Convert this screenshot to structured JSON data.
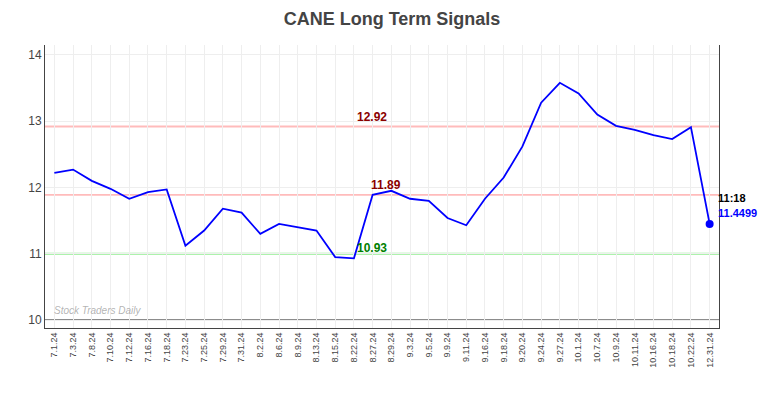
{
  "chart_data": {
    "type": "line",
    "title": "CANE Long Term Signals",
    "categories": [
      "7.1.24",
      "7.3.24",
      "7.8.24",
      "7.10.24",
      "7.12.24",
      "7.16.24",
      "7.18.24",
      "7.23.24",
      "7.25.24",
      "7.29.24",
      "7.31.24",
      "8.2.24",
      "8.6.24",
      "8.9.24",
      "8.13.24",
      "8.15.24",
      "8.22.24",
      "8.27.24",
      "8.29.24",
      "9.3.24",
      "9.5.24",
      "9.9.24",
      "9.11.24",
      "9.16.24",
      "9.18.24",
      "9.20.24",
      "9.24.24",
      "9.27.24",
      "10.1.24",
      "10.7.24",
      "10.9.24",
      "10.11.24",
      "10.16.24",
      "10.18.24",
      "10.22.24",
      "12.31.24"
    ],
    "values": [
      12.22,
      12.27,
      12.1,
      11.98,
      11.83,
      11.93,
      11.97,
      11.12,
      11.35,
      11.68,
      11.62,
      11.3,
      11.45,
      11.4,
      11.35,
      10.95,
      10.93,
      11.89,
      11.95,
      11.83,
      11.8,
      11.54,
      11.43,
      11.83,
      12.15,
      12.62,
      13.28,
      13.58,
      13.42,
      13.1,
      12.93,
      12.87,
      12.79,
      12.73,
      12.91,
      11.4499
    ],
    "color": "blue",
    "ylim": [
      9.88,
      14.15
    ],
    "yticks": [
      10,
      11,
      12,
      13,
      14
    ],
    "grid": true,
    "hlines": [
      {
        "value": 12.92,
        "color": "#ffbbbb"
      },
      {
        "value": 11.89,
        "color": "#ffbbbb"
      },
      {
        "value": 11.0,
        "color": "#90ee90"
      },
      {
        "value": 10.0,
        "color": "#666666"
      }
    ],
    "annotations": [
      {
        "text": "12.92",
        "y": 12.92,
        "color": "darkred"
      },
      {
        "text": "11.89",
        "y": 11.89,
        "color": "darkred"
      },
      {
        "text": "10.93",
        "y": 10.93,
        "color": "green"
      }
    ],
    "last_point_labels": [
      {
        "text": "11:18",
        "color": "black"
      },
      {
        "text": "11.4499",
        "color": "blue"
      }
    ],
    "watermark": "Stock Traders Daily"
  }
}
